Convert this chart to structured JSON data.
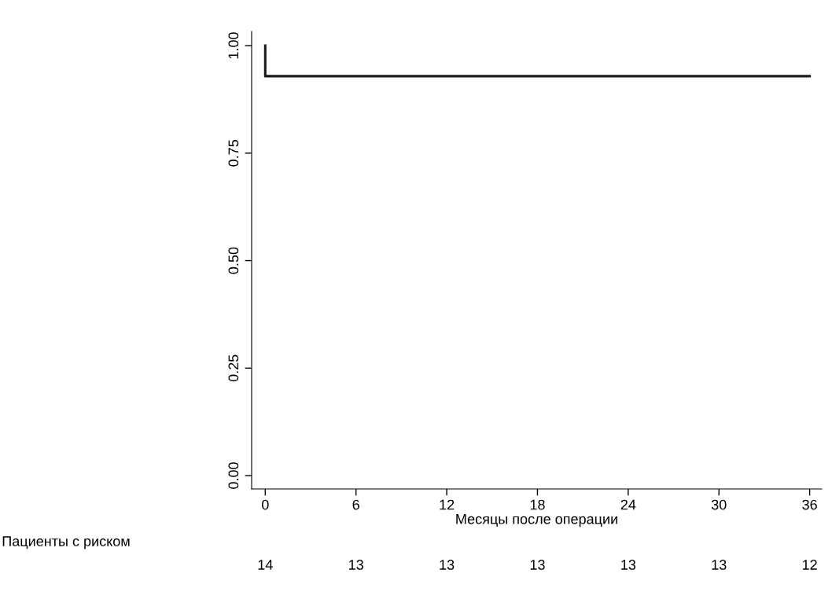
{
  "chart_data": {
    "type": "step",
    "xlabel": "Месяцы после операции",
    "x": [
      0,
      36
    ],
    "series": [
      {
        "color": "#1a1a1a",
        "values": [
          1.0,
          0.929
        ]
      }
    ],
    "xlim": [
      -0.9,
      36.8
    ],
    "ylim": [
      -0.031,
      1.033
    ],
    "xticks": [
      0,
      6,
      12,
      18,
      24,
      30,
      36
    ],
    "yticks": [
      {
        "value": 0,
        "label": "0.00"
      },
      {
        "value": 0.25,
        "label": "0.25"
      },
      {
        "value": 0.5,
        "label": "0.50"
      },
      {
        "value": 0.75,
        "label": "0.75"
      },
      {
        "value": 1,
        "label": "1.00"
      }
    ],
    "grid": false,
    "legend": false,
    "marker": "none",
    "line_style": "solid",
    "annotations": [
      "Пациенты с риском",
      "14",
      "13",
      "13",
      "13",
      "13",
      "13",
      "12"
    ]
  }
}
